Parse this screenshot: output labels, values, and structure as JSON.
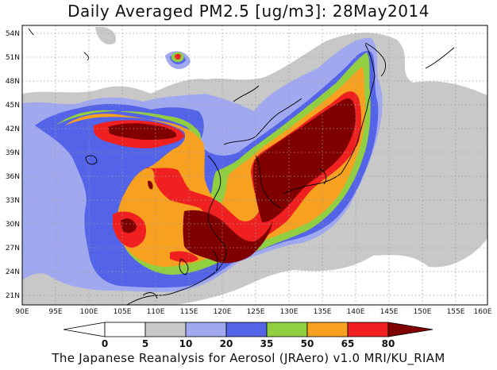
{
  "title": "Daily Averaged PM2.5 [ug/m3]: 28May2014",
  "footer": "The Japanese Reanalysis for Aerosol (JRAero) v1.0 MRI/KU_RIAM",
  "map": {
    "lon_range": [
      90,
      160
    ],
    "lat_range": [
      20,
      55
    ],
    "x_ticks": [
      "90E",
      "95E",
      "100E",
      "105E",
      "110E",
      "115E",
      "120E",
      "125E",
      "130E",
      "135E",
      "140E",
      "145E",
      "150E",
      "155E",
      "160E"
    ],
    "y_ticks": [
      "54N",
      "51N",
      "48N",
      "45N",
      "42N",
      "39N",
      "36N",
      "33N",
      "30N",
      "27N",
      "24N",
      "21N"
    ],
    "gridlines": "dotted"
  },
  "colorbar": {
    "levels": [
      "0",
      "5",
      "10",
      "20",
      "35",
      "50",
      "65",
      "80"
    ],
    "colors": [
      "#ffffff",
      "#c8c8c8",
      "#a0a8f0",
      "#5464e8",
      "#90d040",
      "#f8a020",
      "#f02020",
      "#800000"
    ]
  }
}
